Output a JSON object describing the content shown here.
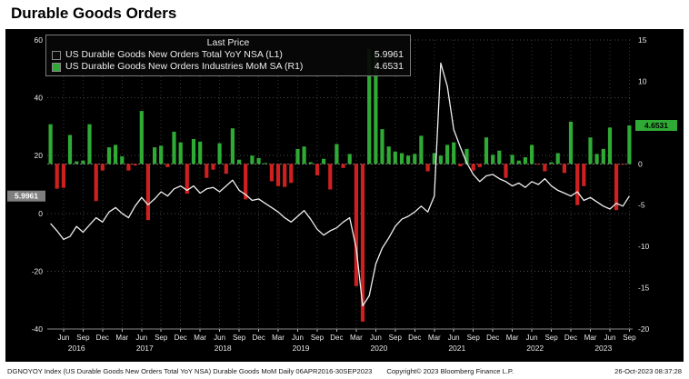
{
  "title": "Durable Goods Orders",
  "legend": {
    "title": "Last Price",
    "series": [
      {
        "label": "US Durable Goods New Orders Total YoY NSA  (L1)",
        "value": "5.9961",
        "swatch": "#0a0a0a"
      },
      {
        "label": "US Durable Goods New Orders Industries MoM SA  (R1)",
        "value": "4.6531",
        "swatch": "#2faa35"
      }
    ]
  },
  "footer": {
    "left": "DGNOYOY Index (US Durable Goods New Orders Total YoY NSA) Durable Goods MoM Daily 06APR2016-30SEP2023",
    "copyright": "Copyright© 2023 Bloomberg Finance L.P.",
    "timestamp": "26-Oct-2023 08:37:28"
  },
  "colors": {
    "background": "#000000",
    "line": "#efefef",
    "bar_positive": "#2faa35",
    "bar_negative": "#cf2020",
    "left_badge_bg": "#7f7f7f",
    "right_badge_bg": "#2faa35"
  },
  "chart_data": {
    "type": "line+bar combo",
    "title": "Durable Goods Orders",
    "x": {
      "start_year": 2016,
      "start_month": 4,
      "n": 90,
      "tick_labels": {
        "3": "Mar",
        "6": "Jun",
        "9": "Sep",
        "12": "Dec"
      },
      "year_labels": [
        "2016",
        "2017",
        "2018",
        "2019",
        "2020",
        "2021",
        "2022",
        "2023"
      ]
    },
    "left_axis": {
      "min": -40,
      "max": 60,
      "ticks": [
        60,
        40,
        20,
        0,
        -20,
        -40
      ]
    },
    "right_axis": {
      "min": -20,
      "max": 15,
      "ticks": [
        15,
        10,
        5,
        0,
        -5,
        -10,
        -15,
        -20
      ]
    },
    "line": {
      "name": "US Durable Goods New Orders Total YoY NSA",
      "axis": "L1",
      "color": "#efefef",
      "last_value": 5.9961,
      "last_label": "5.9961",
      "badge_bg": "#7f7f7f",
      "values": [
        -3.5,
        -6.0,
        -9.0,
        -8.0,
        -4.5,
        -6.5,
        -4.0,
        -1.5,
        -3.0,
        0.5,
        2.0,
        0.0,
        -1.5,
        2.5,
        5.5,
        3.0,
        5.0,
        7.5,
        6.0,
        8.5,
        9.5,
        8.0,
        9.5,
        7.0,
        8.5,
        9.0,
        7.5,
        9.5,
        11.5,
        8.0,
        6.5,
        4.5,
        5.0,
        3.5,
        2.0,
        0.5,
        -1.5,
        -3.0,
        -1.0,
        1.0,
        -2.0,
        -5.5,
        -7.5,
        -6.0,
        -5.0,
        -3.0,
        -1.5,
        -12.0,
        -32.0,
        -28.5,
        -17.5,
        -12.0,
        -8.5,
        -4.5,
        -2.0,
        -1.0,
        0.5,
        2.5,
        0.5,
        6.0,
        52.0,
        44.0,
        29.0,
        23.0,
        17.5,
        13.5,
        11.0,
        13.0,
        13.5,
        12.0,
        11.0,
        9.5,
        10.5,
        9.0,
        11.0,
        10.0,
        12.0,
        9.5,
        8.0,
        7.0,
        6.0,
        7.5,
        4.5,
        5.5,
        4.0,
        2.5,
        1.5,
        3.5,
        2.5,
        5.9961
      ]
    },
    "bars": {
      "name": "US Durable Goods New Orders Industries MoM SA",
      "axis": "R1",
      "color_positive": "#2faa35",
      "color_negative": "#cf2020",
      "last_value": 4.6531,
      "last_label": "4.6531",
      "values": [
        4.8,
        -3.0,
        -2.9,
        3.5,
        0.3,
        0.4,
        4.8,
        -4.5,
        -0.8,
        2.0,
        2.3,
        0.9,
        -0.8,
        -0.2,
        6.4,
        -6.8,
        2.0,
        2.2,
        -0.4,
        3.9,
        2.6,
        -3.6,
        3.0,
        2.7,
        -1.7,
        -0.7,
        2.5,
        -1.2,
        4.3,
        0.5,
        -4.3,
        1.0,
        0.7,
        0.1,
        -2.1,
        -2.7,
        -2.8,
        -2.3,
        1.8,
        2.1,
        0.2,
        -1.4,
        0.6,
        -3.1,
        2.4,
        -0.5,
        1.2,
        -14.8,
        -19.1,
        13.9,
        13.5,
        4.2,
        2.1,
        1.5,
        1.3,
        1.0,
        1.2,
        3.4,
        -0.9,
        1.3,
        1.0,
        2.3,
        2.6,
        -0.3,
        1.8,
        -0.8,
        -0.4,
        3.2,
        1.1,
        1.6,
        -1.7,
        1.1,
        0.4,
        0.8,
        2.3,
        -0.1,
        -0.9,
        0.2,
        1.3,
        -1.1,
        5.1,
        -5.0,
        -2.7,
        3.2,
        1.2,
        1.8,
        4.4,
        -5.6,
        -0.1,
        4.6531
      ]
    }
  }
}
